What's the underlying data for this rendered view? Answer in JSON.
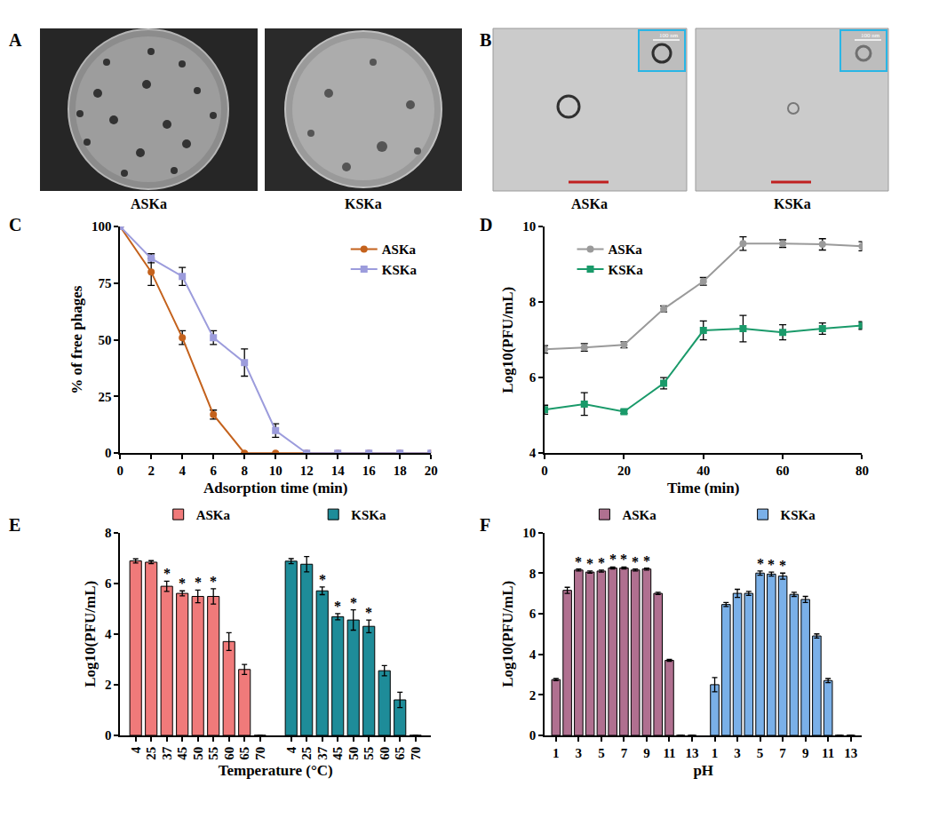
{
  "images": [
    {
      "label": "A",
      "type": "photograph",
      "captions": [
        "ASKa",
        "KSKa"
      ]
    },
    {
      "label": "B",
      "type": "micrograph",
      "captions": [
        "ASKa",
        "KSKa"
      ],
      "scale_bar": "100 nm"
    }
  ],
  "chart_data": [
    {
      "label": "C",
      "type": "line",
      "x_label": "Adsorption time (min)",
      "y_label": "% of free phages",
      "x": [
        0,
        2,
        4,
        6,
        8,
        10,
        12,
        14,
        16,
        18,
        20
      ],
      "series": [
        {
          "name": "ASKa",
          "color": "#c4621d",
          "marker": "circle",
          "values": [
            100,
            80,
            51,
            17,
            0,
            0,
            0,
            0,
            0,
            0,
            0
          ],
          "errors": [
            0,
            6,
            3,
            2,
            0,
            0,
            0,
            0,
            0,
            0,
            0
          ]
        },
        {
          "name": "KSKa",
          "color": "#9c9cdc",
          "marker": "square",
          "values": [
            100,
            86,
            78,
            51,
            40,
            10,
            0,
            0,
            0,
            0,
            0
          ],
          "errors": [
            0,
            2,
            4,
            3,
            6,
            3,
            0,
            0,
            0,
            0,
            0
          ]
        }
      ],
      "xlim": [
        0,
        20
      ],
      "xticks": [
        0,
        2,
        4,
        6,
        8,
        10,
        12,
        14,
        16,
        18,
        20
      ],
      "ylim": [
        0,
        100
      ],
      "yticks": [
        0,
        25,
        50,
        75,
        100
      ],
      "legend": "top right",
      "grid": false
    },
    {
      "label": "D",
      "type": "line",
      "x_label": "Time (min)",
      "y_label": "Log10(PFU/mL)",
      "x": [
        0,
        10,
        20,
        30,
        40,
        50,
        60,
        70,
        80
      ],
      "series": [
        {
          "name": "ASKa",
          "color": "#9a9a9a",
          "marker": "circle",
          "values": [
            6.75,
            6.8,
            6.87,
            7.82,
            8.55,
            9.55,
            9.55,
            9.53,
            9.48
          ],
          "errors": [
            0.1,
            0.1,
            0.08,
            0.08,
            0.1,
            0.18,
            0.1,
            0.15,
            0.12
          ]
        },
        {
          "name": "KSKa",
          "color": "#1a9a6a",
          "marker": "square",
          "values": [
            5.15,
            5.3,
            5.1,
            5.85,
            7.25,
            7.3,
            7.2,
            7.3,
            7.38
          ],
          "errors": [
            0.12,
            0.3,
            0.05,
            0.15,
            0.25,
            0.35,
            0.2,
            0.15,
            0.1
          ]
        }
      ],
      "xlim": [
        0,
        80
      ],
      "xticks": [
        0,
        20,
        40,
        60,
        80
      ],
      "ylim": [
        4,
        10
      ],
      "yticks": [
        4,
        6,
        8,
        10
      ],
      "legend": "top left",
      "grid": false
    },
    {
      "label": "E",
      "type": "bar",
      "x_label": "Temperature (°C)",
      "y_label": "Log10(PFU/mL)",
      "categories": [
        "4",
        "25",
        "37",
        "45",
        "50",
        "55",
        "60",
        "65",
        "70"
      ],
      "significance_mark": "*",
      "series": [
        {
          "name": "ASKa",
          "color": "#f07a7a",
          "values": [
            6.88,
            6.83,
            5.88,
            5.6,
            5.48,
            5.48,
            3.7,
            2.6,
            0
          ],
          "errors": [
            0.08,
            0.06,
            0.2,
            0.1,
            0.25,
            0.3,
            0.35,
            0.2,
            0
          ],
          "significant": [
            false,
            false,
            true,
            true,
            true,
            true,
            false,
            false,
            false
          ]
        },
        {
          "name": "KSKa",
          "color": "#1e8c99",
          "values": [
            6.87,
            6.75,
            5.7,
            4.68,
            4.55,
            4.3,
            2.55,
            1.4,
            0
          ],
          "errors": [
            0.1,
            0.3,
            0.15,
            0.12,
            0.4,
            0.25,
            0.2,
            0.3,
            0
          ],
          "significant": [
            false,
            false,
            true,
            true,
            true,
            true,
            false,
            false,
            false
          ]
        }
      ],
      "ylim": [
        0,
        8
      ],
      "yticks": [
        0,
        2,
        4,
        6,
        8
      ],
      "legend": "top",
      "grid": false
    },
    {
      "label": "F",
      "type": "bar",
      "x_label": "pH",
      "y_label": "Log10(PFU/mL)",
      "categories": [
        "1",
        null,
        "3",
        null,
        "5",
        null,
        "7",
        null,
        "9",
        null,
        "11",
        null,
        "13"
      ],
      "significance_mark": "*",
      "series": [
        {
          "name": "ASKa",
          "color": "#b07090",
          "values": [
            2.75,
            7.15,
            8.15,
            8.05,
            8.1,
            8.25,
            8.25,
            8.15,
            8.2,
            7.0,
            3.7,
            0,
            0
          ],
          "errors": [
            0.05,
            0.15,
            0.05,
            0.05,
            0.05,
            0.05,
            0.05,
            0.05,
            0.05,
            0.05,
            0.05,
            0,
            0
          ],
          "significant": [
            false,
            false,
            true,
            true,
            true,
            true,
            true,
            true,
            true,
            false,
            false,
            false,
            false
          ]
        },
        {
          "name": "KSKa",
          "color": "#7ab0e8",
          "values": [
            2.5,
            6.45,
            7.0,
            7.0,
            8.0,
            7.95,
            7.85,
            6.95,
            6.7,
            4.9,
            2.7,
            0,
            0
          ],
          "errors": [
            0.35,
            0.1,
            0.2,
            0.1,
            0.1,
            0.1,
            0.15,
            0.1,
            0.15,
            0.1,
            0.1,
            0,
            0
          ],
          "significant": [
            false,
            false,
            false,
            false,
            true,
            true,
            true,
            false,
            false,
            false,
            false,
            false,
            false
          ]
        }
      ],
      "ylim": [
        0,
        10
      ],
      "yticks": [
        0,
        2,
        4,
        6,
        8,
        10
      ],
      "legend": "top",
      "grid": false
    }
  ]
}
